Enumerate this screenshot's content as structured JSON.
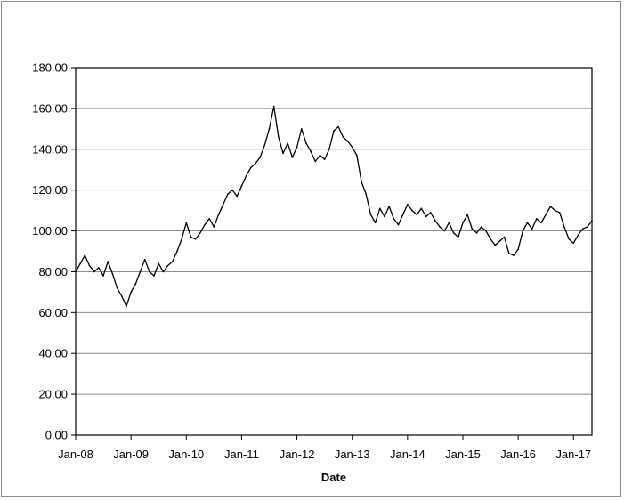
{
  "chart_data": {
    "type": "line",
    "title": "",
    "xlabel": "Date",
    "ylabel": "",
    "ylim": [
      0,
      180
    ],
    "y_ticks": [
      "0.00",
      "20.00",
      "40.00",
      "60.00",
      "80.00",
      "100.00",
      "120.00",
      "140.00",
      "160.00",
      "180.00"
    ],
    "x_range": [
      "2008-01",
      "2017-05"
    ],
    "x_ticks": [
      {
        "date": "2008-01",
        "label": "Jan-08"
      },
      {
        "date": "2009-01",
        "label": "Jan-09"
      },
      {
        "date": "2010-01",
        "label": "Jan-10"
      },
      {
        "date": "2011-01",
        "label": "Jan-11"
      },
      {
        "date": "2012-01",
        "label": "Jan-12"
      },
      {
        "date": "2013-01",
        "label": "Jan-13"
      },
      {
        "date": "2014-01",
        "label": "Jan-14"
      },
      {
        "date": "2015-01",
        "label": "Jan-15"
      },
      {
        "date": "2016-01",
        "label": "Jan-16"
      },
      {
        "date": "2017-01",
        "label": "Jan-17"
      }
    ],
    "grid": "horizontal",
    "legend": "none",
    "line_color": "#000000",
    "series": [
      {
        "points": [
          [
            "2008-01",
            80
          ],
          [
            "2008-02",
            84
          ],
          [
            "2008-03",
            88
          ],
          [
            "2008-04",
            83
          ],
          [
            "2008-05",
            80
          ],
          [
            "2008-06",
            82
          ],
          [
            "2008-07",
            78
          ],
          [
            "2008-08",
            85
          ],
          [
            "2008-09",
            79
          ],
          [
            "2008-10",
            72
          ],
          [
            "2008-11",
            68
          ],
          [
            "2008-12",
            63
          ],
          [
            "2009-01",
            70
          ],
          [
            "2009-02",
            74
          ],
          [
            "2009-03",
            80
          ],
          [
            "2009-04",
            86
          ],
          [
            "2009-05",
            80
          ],
          [
            "2009-06",
            78
          ],
          [
            "2009-07",
            84
          ],
          [
            "2009-08",
            80
          ],
          [
            "2009-09",
            83
          ],
          [
            "2009-10",
            85
          ],
          [
            "2009-11",
            90
          ],
          [
            "2009-12",
            96
          ],
          [
            "2010-01",
            104
          ],
          [
            "2010-02",
            97
          ],
          [
            "2010-03",
            96
          ],
          [
            "2010-04",
            99
          ],
          [
            "2010-05",
            103
          ],
          [
            "2010-06",
            106
          ],
          [
            "2010-07",
            102
          ],
          [
            "2010-08",
            108
          ],
          [
            "2010-09",
            113
          ],
          [
            "2010-10",
            118
          ],
          [
            "2010-11",
            120
          ],
          [
            "2010-12",
            117
          ],
          [
            "2011-01",
            122
          ],
          [
            "2011-02",
            127
          ],
          [
            "2011-03",
            131
          ],
          [
            "2011-04",
            133
          ],
          [
            "2011-05",
            136
          ],
          [
            "2011-06",
            142
          ],
          [
            "2011-07",
            150
          ],
          [
            "2011-08",
            161
          ],
          [
            "2011-09",
            146
          ],
          [
            "2011-10",
            138
          ],
          [
            "2011-11",
            143
          ],
          [
            "2011-12",
            136
          ],
          [
            "2012-01",
            141
          ],
          [
            "2012-02",
            150
          ],
          [
            "2012-03",
            143
          ],
          [
            "2012-04",
            139
          ],
          [
            "2012-05",
            134
          ],
          [
            "2012-06",
            137
          ],
          [
            "2012-07",
            135
          ],
          [
            "2012-08",
            140
          ],
          [
            "2012-09",
            149
          ],
          [
            "2012-10",
            151
          ],
          [
            "2012-11",
            146
          ],
          [
            "2012-12",
            144
          ],
          [
            "2013-01",
            141
          ],
          [
            "2013-02",
            137
          ],
          [
            "2013-03",
            124
          ],
          [
            "2013-04",
            118
          ],
          [
            "2013-05",
            108
          ],
          [
            "2013-06",
            104
          ],
          [
            "2013-07",
            111
          ],
          [
            "2013-08",
            107
          ],
          [
            "2013-09",
            112
          ],
          [
            "2013-10",
            106
          ],
          [
            "2013-11",
            103
          ],
          [
            "2013-12",
            108
          ],
          [
            "2014-01",
            113
          ],
          [
            "2014-02",
            110
          ],
          [
            "2014-03",
            108
          ],
          [
            "2014-04",
            111
          ],
          [
            "2014-05",
            107
          ],
          [
            "2014-06",
            109
          ],
          [
            "2014-07",
            105
          ],
          [
            "2014-08",
            102
          ],
          [
            "2014-09",
            100
          ],
          [
            "2014-10",
            104
          ],
          [
            "2014-11",
            99
          ],
          [
            "2014-12",
            97
          ],
          [
            "2015-01",
            104
          ],
          [
            "2015-02",
            108
          ],
          [
            "2015-03",
            101
          ],
          [
            "2015-04",
            99
          ],
          [
            "2015-05",
            102
          ],
          [
            "2015-06",
            100
          ],
          [
            "2015-07",
            96
          ],
          [
            "2015-08",
            93
          ],
          [
            "2015-09",
            95
          ],
          [
            "2015-10",
            97
          ],
          [
            "2015-11",
            89
          ],
          [
            "2015-12",
            88
          ],
          [
            "2016-01",
            91
          ],
          [
            "2016-02",
            100
          ],
          [
            "2016-03",
            104
          ],
          [
            "2016-04",
            101
          ],
          [
            "2016-05",
            106
          ],
          [
            "2016-06",
            104
          ],
          [
            "2016-07",
            108
          ],
          [
            "2016-08",
            112
          ],
          [
            "2016-09",
            110
          ],
          [
            "2016-10",
            109
          ],
          [
            "2016-11",
            102
          ],
          [
            "2016-12",
            96
          ],
          [
            "2017-01",
            94
          ],
          [
            "2017-02",
            98
          ],
          [
            "2017-03",
            101
          ],
          [
            "2017-04",
            102
          ],
          [
            "2017-05",
            105
          ]
        ]
      }
    ]
  }
}
